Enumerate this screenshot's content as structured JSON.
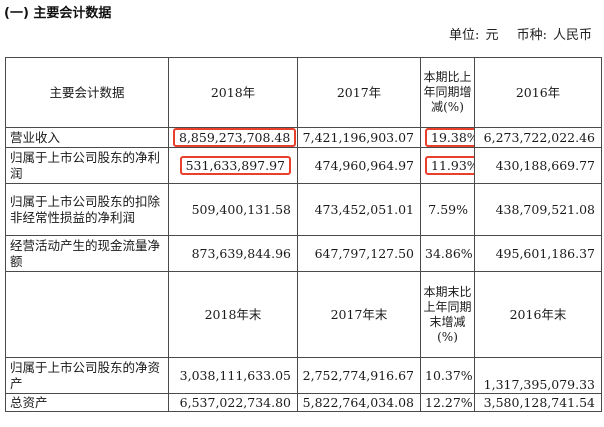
{
  "section_title": "(一) 主要会计数据",
  "unit_label": "单位:",
  "unit_value": "元",
  "currency_label": "币种:",
  "currency_value": "人民币",
  "header1": {
    "item": "主要会计数据",
    "y2018": "2018年",
    "y2017": "2017年",
    "change": "本期比上年同期增减(%)",
    "y2016": "2016年"
  },
  "rows1": [
    {
      "label": "营业收入",
      "v2018": "8,859,273,708.48",
      "v2017": "7,421,196,903.07",
      "change": "19.38%",
      "v2016": "6,273,722,022.46"
    },
    {
      "label": "归属于上市公司股东的净利润",
      "v2018": "531,633,897.97",
      "v2017": "474,960,964.97",
      "change": "11.93%",
      "v2016": "430,188,669.77"
    },
    {
      "label": "归属于上市公司股东的扣除非经常性损益的净利润",
      "v2018": "509,400,131.58",
      "v2017": "473,452,051.01",
      "change": "7.59%",
      "v2016": "438,709,521.08"
    },
    {
      "label": "经营活动产生的现金流量净额",
      "v2018": "873,639,844.96",
      "v2017": "647,797,127.50",
      "change": "34.86%",
      "v2016": "495,601,186.37"
    }
  ],
  "header2": {
    "y2018": "2018年末",
    "y2017": "2017年末",
    "change": "本期末比上年同期末增减(%)",
    "y2016": "2016年末"
  },
  "rows2": [
    {
      "label": "归属于上市公司股东的净资产",
      "v2018": "3,038,111,633.05",
      "v2017": "2,752,774,916.67",
      "change": "10.37%",
      "v2016": "1,317,395,079.33"
    },
    {
      "label": "总资产",
      "v2018": "6,537,022,734.80",
      "v2017": "5,822,764,034.08",
      "change": "12.27%",
      "v2016": "3,580,128,741.54"
    }
  ],
  "highlight_color": "#e8402a"
}
